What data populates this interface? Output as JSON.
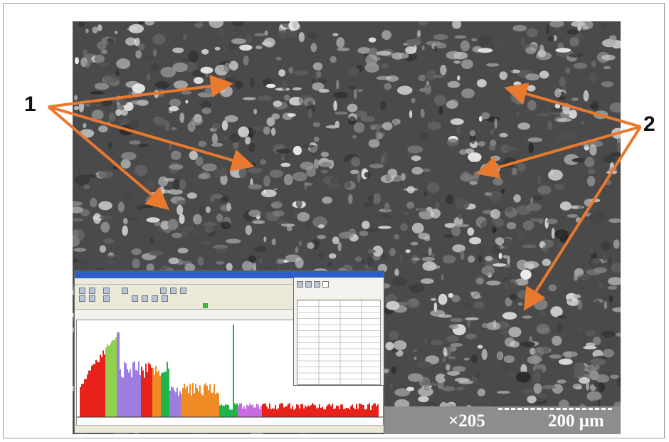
{
  "figure": {
    "magnification": "×205",
    "scale_bar_label": "200 μm",
    "label_left": "1",
    "label_right": "2",
    "arrow_color": "#e8792f"
  },
  "inset": {
    "title_bar_color": "#2d5ec8",
    "spectrum_colors": [
      "#e8211b",
      "#8fd14f",
      "#9d7de0",
      "#f08a24",
      "#1fb54a",
      "#c86de0"
    ]
  }
}
